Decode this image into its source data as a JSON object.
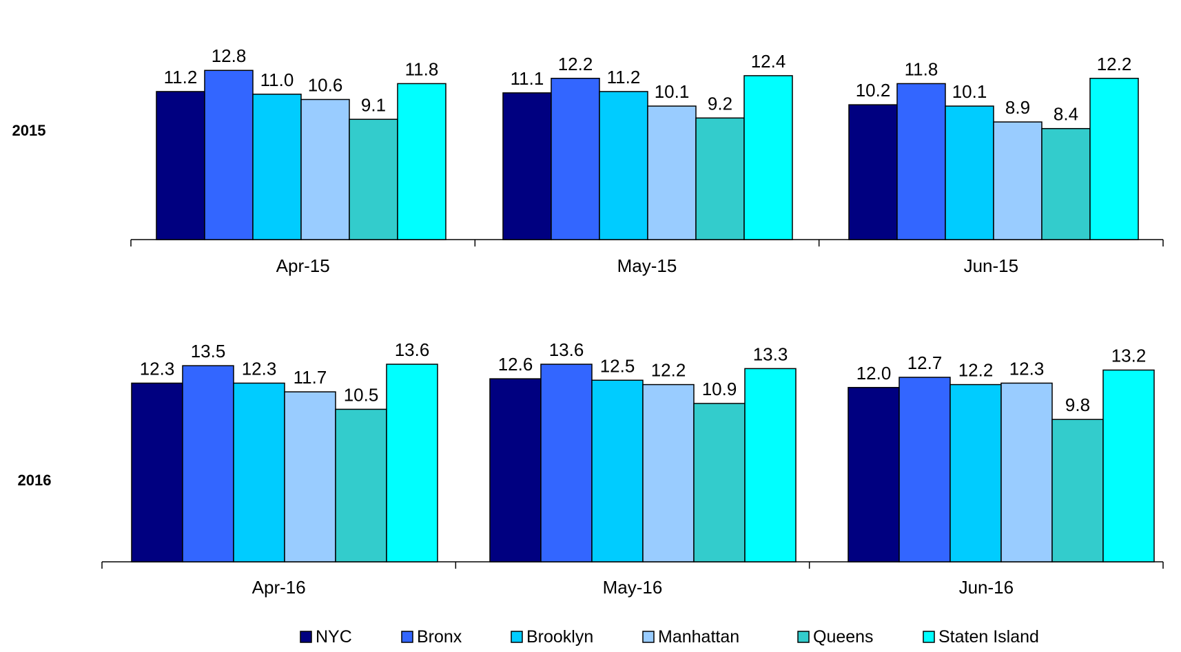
{
  "chart_data": {
    "type": "bar",
    "series_names": [
      "NYC",
      "Bronx",
      "Brooklyn",
      "Manhattan",
      "Queens",
      "Staten Island"
    ],
    "colors": [
      "#000080",
      "#3366ff",
      "#00ccff",
      "#99ccff",
      "#33cccc",
      "#00ffff"
    ],
    "panels": [
      {
        "row_label": "2015",
        "categories": [
          "Apr-15",
          "May-15",
          "Jun-15"
        ],
        "values": [
          [
            11.2,
            12.8,
            11.0,
            10.6,
            9.1,
            11.8
          ],
          [
            11.1,
            12.2,
            11.2,
            10.1,
            9.2,
            12.4
          ],
          [
            10.2,
            11.8,
            10.1,
            8.9,
            8.4,
            12.2
          ]
        ],
        "value_labels": [
          [
            "11.2",
            "12.8",
            "11.0",
            "10.6",
            "9.1",
            "11.8"
          ],
          [
            "11.1",
            "12.2",
            "11.2",
            "10.1",
            "9.2",
            "12.4"
          ],
          [
            "10.2",
            "11.8",
            "10.1",
            "8.9",
            "8.4",
            "12.2"
          ]
        ]
      },
      {
        "row_label": "2016",
        "categories": [
          "Apr-16",
          "May-16",
          "Jun-16"
        ],
        "values": [
          [
            12.3,
            13.5,
            12.3,
            11.7,
            10.5,
            13.6
          ],
          [
            12.6,
            13.6,
            12.5,
            12.2,
            10.9,
            13.3
          ],
          [
            12.0,
            12.7,
            12.2,
            12.3,
            9.8,
            13.2
          ]
        ],
        "value_labels": [
          [
            "12.3",
            "13.5",
            "12.3",
            "11.7",
            "10.5",
            "13.6"
          ],
          [
            "12.6",
            "13.6",
            "12.5",
            "12.2",
            "10.9",
            "13.3"
          ],
          [
            "12.0",
            "12.7",
            "12.2",
            "12.3",
            "9.8",
            "13.2"
          ]
        ]
      }
    ],
    "legend_position": "bottom",
    "grid": false
  }
}
